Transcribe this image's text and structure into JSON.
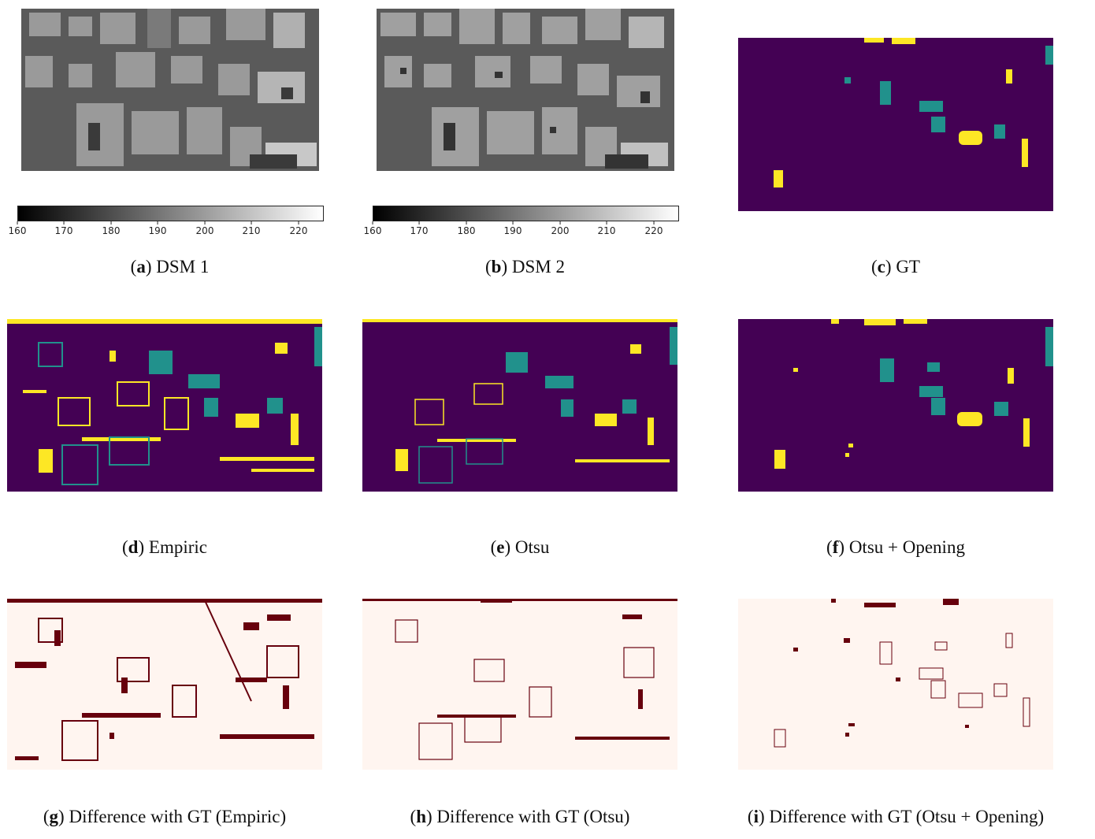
{
  "colorbar": {
    "ticks": [
      "160",
      "170",
      "180",
      "190",
      "200",
      "210",
      "220"
    ]
  },
  "captions": {
    "a": {
      "letter": "a",
      "text": "DSM 1"
    },
    "b": {
      "letter": "b",
      "text": "DSM 2"
    },
    "c": {
      "letter": "c",
      "text": "GT"
    },
    "d": {
      "letter": "d",
      "text": "Empiric"
    },
    "e": {
      "letter": "e",
      "text": "Otsu"
    },
    "f": {
      "letter": "f",
      "text": "Otsu + Opening"
    },
    "g": {
      "letter": "g",
      "text": "Difference with GT (Empiric)"
    },
    "h": {
      "letter": "h",
      "text": "Difference with GT (Otsu)"
    },
    "i": {
      "letter": "i",
      "text": "Difference with GT (Otsu + Opening)"
    }
  },
  "palette": {
    "class_bg": "#440154",
    "class_teal": "#21918c",
    "class_yellow": "#fde725",
    "diff_bg": "#fff5f0",
    "diff_fg": "#67000d"
  }
}
